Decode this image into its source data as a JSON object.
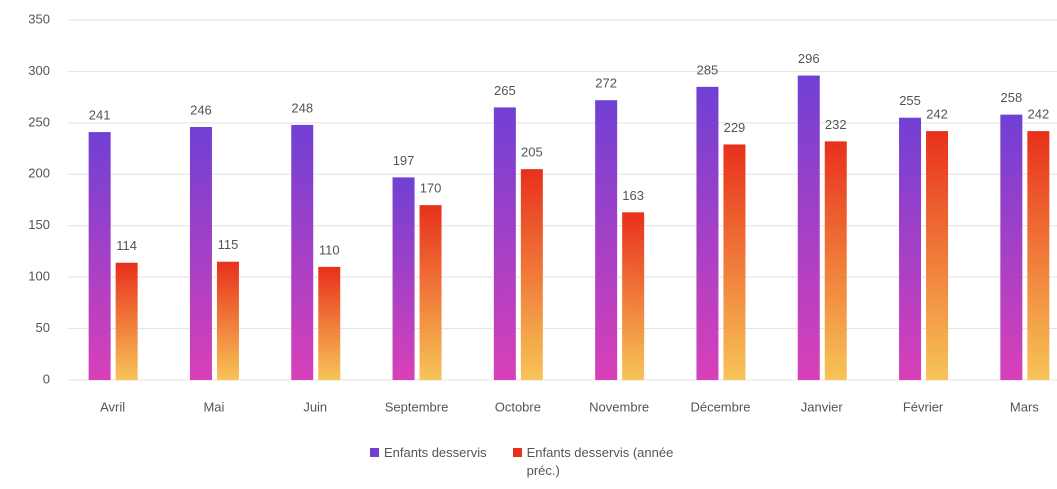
{
  "chart_data": {
    "type": "bar",
    "categories": [
      "Avril",
      "Mai",
      "Juin",
      "Septembre",
      "Octobre",
      "Novembre",
      "Décembre",
      "Janvier",
      "Février",
      "Mars"
    ],
    "series": [
      {
        "name": "Enfants desservis",
        "color": "#7040d4",
        "values": [
          241,
          246,
          248,
          197,
          265,
          272,
          285,
          296,
          255,
          258
        ]
      },
      {
        "name": "Enfants desservis (année préc.)",
        "color": "#e8301c",
        "values": [
          114,
          115,
          110,
          170,
          205,
          163,
          229,
          232,
          242,
          242
        ]
      }
    ],
    "ylim": [
      0,
      350
    ],
    "yticks": [
      0,
      50,
      100,
      150,
      200,
      250,
      300,
      350
    ],
    "grid": true
  }
}
